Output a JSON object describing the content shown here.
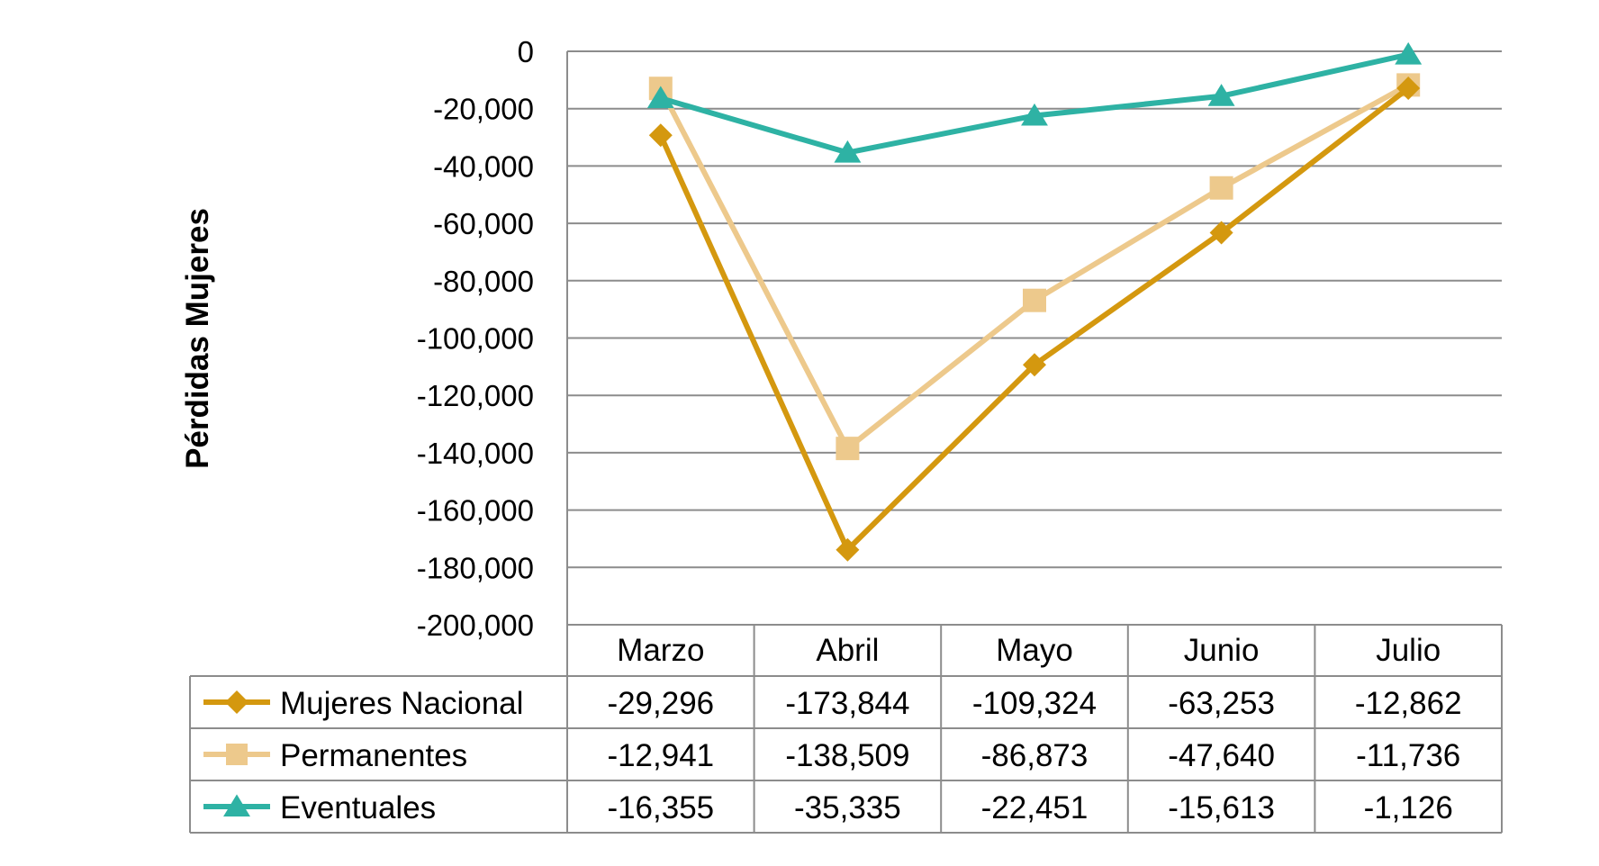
{
  "chart_data": {
    "type": "line",
    "title": "",
    "xlabel": "",
    "ylabel": "Pérdidas Mujeres",
    "ylim": [
      -200000,
      0
    ],
    "yticks": [
      0,
      -20000,
      -40000,
      -60000,
      -80000,
      -100000,
      -120000,
      -140000,
      -160000,
      -180000,
      -200000
    ],
    "ytick_labels": [
      "0",
      "-20,000",
      "-40,000",
      "-60,000",
      "-80,000",
      "-100,000",
      "-120,000",
      "-140,000",
      "-160,000",
      "-180,000",
      "-200,000"
    ],
    "grid": true,
    "legend": "data-table",
    "categories": [
      "Marzo",
      "Abril",
      "Mayo",
      "Junio",
      "Julio"
    ],
    "series": [
      {
        "name": "Mujeres Nacional",
        "color": "#D4980F",
        "marker": "diamond",
        "values": [
          -29296,
          -173844,
          -109324,
          -63253,
          -12862
        ],
        "labels": [
          "-29,296",
          "-173,844",
          "-109,324",
          "-63,253",
          "-12,862"
        ]
      },
      {
        "name": "Permanentes",
        "color": "#EDC98C",
        "marker": "square",
        "values": [
          -12941,
          -138509,
          -86873,
          -47640,
          -11736
        ],
        "labels": [
          "-12,941",
          "-138,509",
          "-86,873",
          "-47,640",
          "-11,736"
        ]
      },
      {
        "name": "Eventuales",
        "color": "#2EB2A4",
        "marker": "triangle",
        "values": [
          -16355,
          -35335,
          -22451,
          -15613,
          -1126
        ],
        "labels": [
          "-16,355",
          "-35,335",
          "-22,451",
          "-15,613",
          "-1,126"
        ]
      }
    ]
  }
}
